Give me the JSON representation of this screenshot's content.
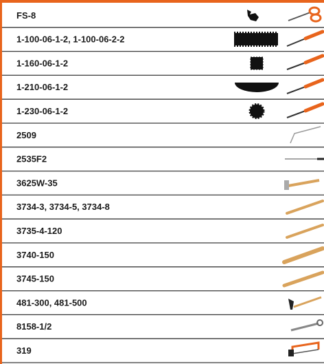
{
  "rows": [
    "FS-8",
    "1-100-06-1-2, 1-100-06-2-2",
    "1-160-06-1-2",
    "1-210-06-1-2",
    "1-230-06-1-2",
    "2509",
    "2535F2",
    "3625W-35",
    "3734-3, 3734-5, 3734-8",
    "3735-4-120",
    "3740-150",
    "3745-150",
    "481-300, 481-500",
    "8158-1/2",
    "319"
  ]
}
